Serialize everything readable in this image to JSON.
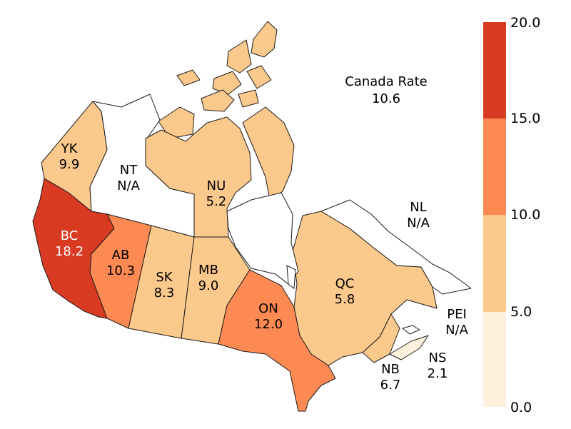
{
  "summary": {
    "title": "Canada Rate",
    "value": "10.6"
  },
  "colors": {
    "bin_0_5": "#fdf0dc",
    "bin_5_10": "#fcc98c",
    "bin_10_15": "#fc8a52",
    "bin_15_20": "#d93a22",
    "no_data": "#ffffff",
    "border": "#1a1a1a"
  },
  "legend": {
    "ticks": [
      "0.0",
      "5.0",
      "10.0",
      "15.0",
      "20.0"
    ],
    "bins": [
      {
        "min": 0,
        "max": 5
      },
      {
        "min": 5,
        "max": 10
      },
      {
        "min": 10,
        "max": 15
      },
      {
        "min": 15,
        "max": 20
      }
    ]
  },
  "regions": [
    {
      "code": "YK",
      "value": "9.9",
      "rate": 9.9
    },
    {
      "code": "NT",
      "value": "N/A",
      "rate": null
    },
    {
      "code": "NU",
      "value": "5.2",
      "rate": 5.2
    },
    {
      "code": "BC",
      "value": "18.2",
      "rate": 18.2
    },
    {
      "code": "AB",
      "value": "10.3",
      "rate": 10.3
    },
    {
      "code": "SK",
      "value": "8.3",
      "rate": 8.3
    },
    {
      "code": "MB",
      "value": "9.0",
      "rate": 9.0
    },
    {
      "code": "ON",
      "value": "12.0",
      "rate": 12.0
    },
    {
      "code": "QC",
      "value": "5.8",
      "rate": 5.8
    },
    {
      "code": "NL",
      "value": "N/A",
      "rate": null
    },
    {
      "code": "NB",
      "value": "6.7",
      "rate": 6.7
    },
    {
      "code": "NS",
      "value": "2.1",
      "rate": 2.1
    },
    {
      "code": "PEI",
      "value": "N/A",
      "rate": null
    }
  ]
}
